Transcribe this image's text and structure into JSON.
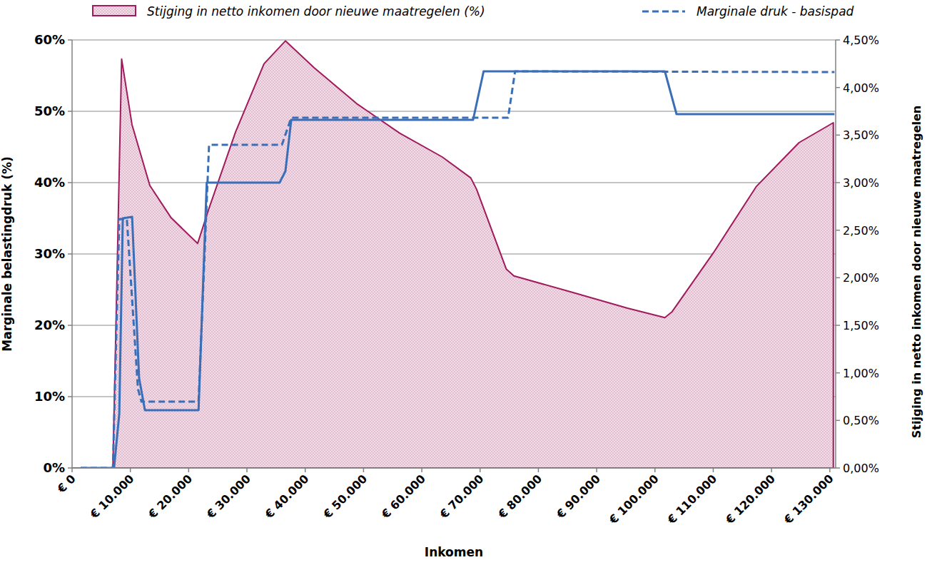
{
  "chart_data": {
    "type": "line",
    "x_label": "Inkomen",
    "y_label": "Marginale belastingdruk (%)",
    "y2_label": "Stijging in netto inkomen door nieuwe maatregelen",
    "xlim": [
      0,
      131000
    ],
    "xticks": [
      {
        "value": 0,
        "label": "€ 0"
      },
      {
        "value": 10000,
        "label": "€ 10.000"
      },
      {
        "value": 20000,
        "label": "€ 20.000"
      },
      {
        "value": 30000,
        "label": "€ 30.000"
      },
      {
        "value": 40000,
        "label": "€ 40.000"
      },
      {
        "value": 50000,
        "label": "€ 50.000"
      },
      {
        "value": 60000,
        "label": "€ 60.000"
      },
      {
        "value": 70000,
        "label": "€ 70.000"
      },
      {
        "value": 80000,
        "label": "€ 80.000"
      },
      {
        "value": 90000,
        "label": "€ 90.000"
      },
      {
        "value": 100000,
        "label": "€ 100.000"
      },
      {
        "value": 110000,
        "label": "€ 110.000"
      },
      {
        "value": 120000,
        "label": "€ 120.000"
      },
      {
        "value": 130000,
        "label": "€ 130.000"
      }
    ],
    "ylim": [
      0,
      60
    ],
    "yticks": [
      {
        "value": 0,
        "label": "0%"
      },
      {
        "value": 10,
        "label": "10%"
      },
      {
        "value": 20,
        "label": "20%"
      },
      {
        "value": 30,
        "label": "30%"
      },
      {
        "value": 40,
        "label": "40%"
      },
      {
        "value": 50,
        "label": "50%"
      },
      {
        "value": 60,
        "label": "60%"
      }
    ],
    "y2lim": [
      0,
      4.5
    ],
    "y2ticks": [
      {
        "value": 0,
        "label": "0,00%"
      },
      {
        "value": 0.5,
        "label": "0,50%"
      },
      {
        "value": 1,
        "label": "1,00%"
      },
      {
        "value": 1.5,
        "label": "1,50%"
      },
      {
        "value": 2,
        "label": "2,00%"
      },
      {
        "value": 2.5,
        "label": "2,50%"
      },
      {
        "value": 3,
        "label": "3,00%"
      },
      {
        "value": 3.5,
        "label": "3,50%"
      },
      {
        "value": 4,
        "label": "4,00%"
      },
      {
        "value": 4.5,
        "label": "4,50%"
      }
    ],
    "grid": true,
    "legend": "top",
    "series": [
      {
        "name": "Stijging in netto inkomen door nieuwe maatregelen (%)",
        "type": "area",
        "axis": "y2",
        "color": "#a01a5c",
        "x": [
          0,
          7000,
          8500,
          10280,
          13340,
          17000,
          21540,
          23380,
          28030,
          32930,
          36600,
          41500,
          48840,
          56200,
          63500,
          68400,
          69400,
          74500,
          75800,
          85600,
          95300,
          101700,
          102900,
          110000,
          117400,
          124700,
          130600,
          130600
        ],
        "values": [
          0,
          0,
          4.3,
          3.61,
          2.97,
          2.63,
          2.36,
          2.71,
          3.53,
          4.25,
          4.49,
          4.21,
          3.83,
          3.52,
          3.27,
          3.05,
          2.93,
          2.09,
          2.02,
          1.85,
          1.68,
          1.58,
          1.64,
          2.26,
          2.96,
          3.42,
          3.63,
          0
        ]
      },
      {
        "name": "Marginale druk - basispad",
        "type": "line",
        "line_style": "dashed",
        "color": "#3a6fb7",
        "x": [
          1470,
          7000,
          8100,
          9400,
          11300,
          11900,
          21700,
          23500,
          36000,
          37600,
          74800,
          76000,
          130800
        ],
        "values": [
          0,
          0,
          34.9,
          34.9,
          11.1,
          9.3,
          9.3,
          45.3,
          45.3,
          49.1,
          49.1,
          55.6,
          55.5
        ]
      },
      {
        "type": "line",
        "line_style": "solid",
        "color": "#3a6fb7",
        "x": [
          1470,
          7200,
          8100,
          8700,
          10300,
          11500,
          12500,
          21700,
          23100,
          35600,
          36600,
          37600,
          68800,
          70600,
          101700,
          103700,
          130800
        ],
        "values": [
          0,
          0,
          7.6,
          35,
          35.2,
          12.6,
          8.1,
          8.1,
          40,
          40,
          41.6,
          48.8,
          48.8,
          55.6,
          55.6,
          49.6,
          49.6
        ]
      }
    ]
  }
}
